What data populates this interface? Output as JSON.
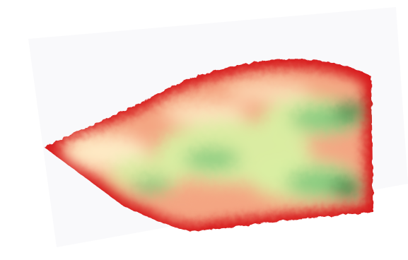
{
  "map": {
    "type": "field-heatmap",
    "palette": {
      "edge_red": "#d7191c",
      "orange": "#f4a582",
      "light": "#fff2cc",
      "light_green": "#d9f0a3",
      "green": "#78c679",
      "dark_green": "#238443"
    }
  }
}
